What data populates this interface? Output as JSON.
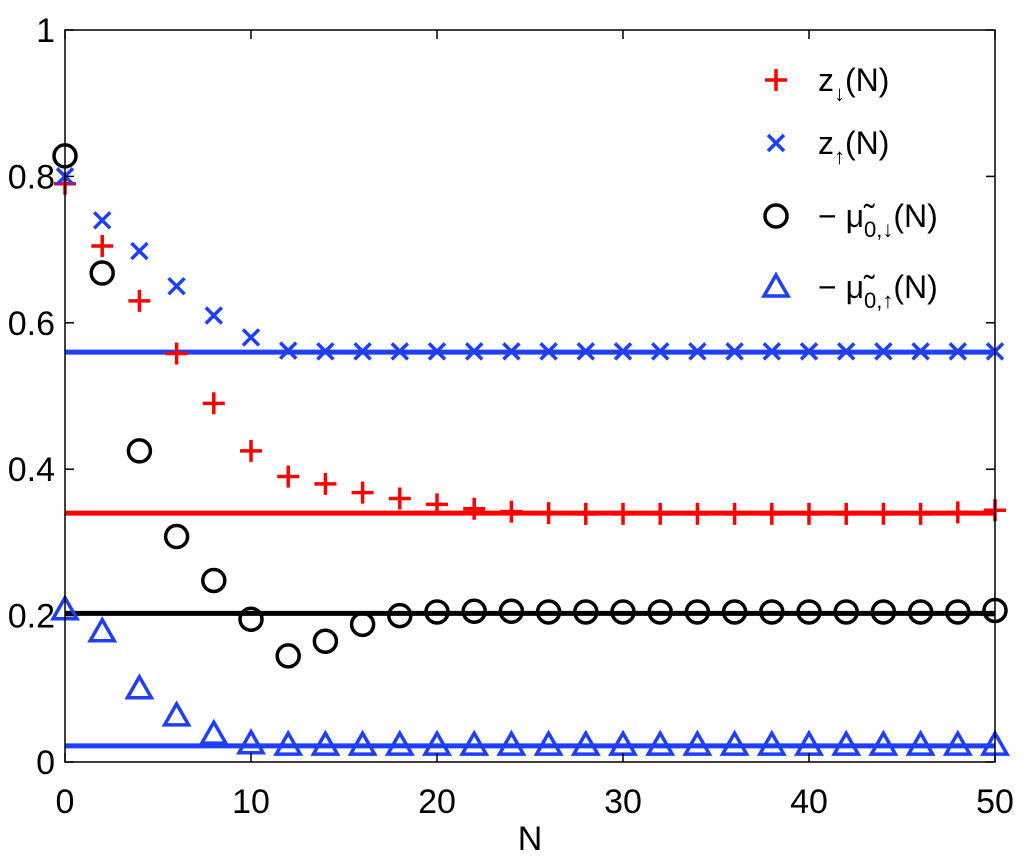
{
  "chart_data": {
    "type": "scatter",
    "xlabel": "N",
    "ylabel": "",
    "xlim": [
      0,
      50
    ],
    "ylim": [
      0,
      1
    ],
    "xticks": [
      "0",
      "10",
      "20",
      "30",
      "40",
      "50"
    ],
    "yticks": [
      "0",
      "0.2",
      "0.4",
      "0.6",
      "0.8",
      "1"
    ],
    "grid": false,
    "legend_position": "top-right",
    "x": [
      0,
      2,
      4,
      6,
      8,
      10,
      12,
      14,
      16,
      18,
      20,
      22,
      24,
      26,
      28,
      30,
      32,
      34,
      36,
      38,
      40,
      42,
      44,
      46,
      48,
      50
    ],
    "series": [
      {
        "name": "z↓(N)",
        "legend": {
          "main": "z",
          "sub": "↓",
          "tail": "(N)"
        },
        "marker": "plus",
        "color": "#ff0000",
        "values": [
          0.79,
          0.705,
          0.63,
          0.558,
          0.49,
          0.425,
          0.39,
          0.38,
          0.368,
          0.36,
          0.352,
          0.346,
          0.342,
          0.34,
          0.339,
          0.339,
          0.339,
          0.339,
          0.339,
          0.339,
          0.339,
          0.339,
          0.339,
          0.339,
          0.341,
          0.344
        ]
      },
      {
        "name": "z↑(N)",
        "legend": {
          "main": "z",
          "sub": "↑",
          "tail": "(N)"
        },
        "marker": "x",
        "color": "#1f3fff",
        "values": [
          0.8,
          0.74,
          0.698,
          0.65,
          0.61,
          0.58,
          0.562,
          0.561,
          0.561,
          0.561,
          0.561,
          0.561,
          0.561,
          0.561,
          0.561,
          0.561,
          0.561,
          0.561,
          0.561,
          0.561,
          0.561,
          0.561,
          0.561,
          0.561,
          0.561,
          0.561
        ]
      },
      {
        "name": "− μ̃0,↓(N)",
        "legend": {
          "main": "− μ̃",
          "sub": "0,↓",
          "tail": "(N)"
        },
        "marker": "circle",
        "color": "#000000",
        "values": [
          0.828,
          0.668,
          0.425,
          0.308,
          0.248,
          0.195,
          0.145,
          0.165,
          0.188,
          0.2,
          0.205,
          0.206,
          0.206,
          0.205,
          0.205,
          0.205,
          0.205,
          0.205,
          0.205,
          0.205,
          0.205,
          0.205,
          0.205,
          0.205,
          0.205,
          0.207
        ]
      },
      {
        "name": "− μ̃0,↑(N)",
        "legend": {
          "main": "− μ̃",
          "sub": "0,↑",
          "tail": "(N)"
        },
        "marker": "triangle",
        "color": "#1f3fff",
        "values": [
          0.208,
          0.178,
          0.1,
          0.063,
          0.038,
          0.025,
          0.023,
          0.023,
          0.023,
          0.023,
          0.023,
          0.023,
          0.023,
          0.023,
          0.023,
          0.023,
          0.023,
          0.023,
          0.023,
          0.023,
          0.023,
          0.023,
          0.023,
          0.023,
          0.023,
          0.023
        ]
      }
    ],
    "reference_lines": [
      {
        "y": 0.56,
        "color": "#1f3fff"
      },
      {
        "y": 0.34,
        "color": "#ff0000"
      },
      {
        "y": 0.203,
        "color": "#000000"
      },
      {
        "y": 0.022,
        "color": "#1f3fff"
      }
    ]
  }
}
